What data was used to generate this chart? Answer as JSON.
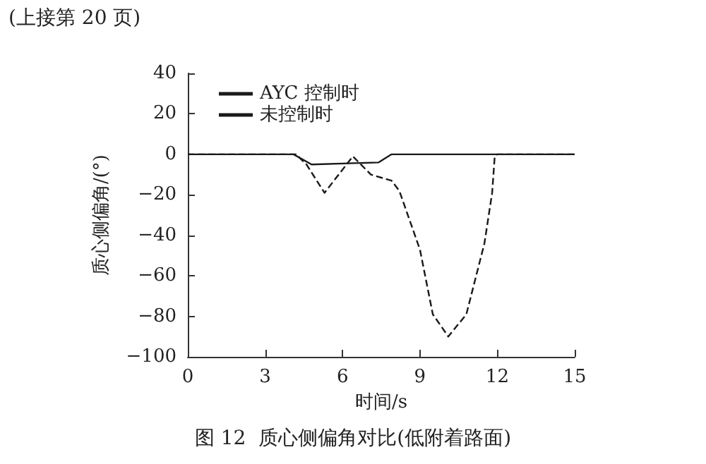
{
  "chart_data": {
    "type": "line",
    "title": "图 12  质心侧偏角对比(低附着路面)",
    "xlabel": "时间/s",
    "ylabel": "质心侧偏角/(°)",
    "annotations": [
      "(上接第 20 页)"
    ],
    "x": [
      0,
      4.1,
      4.8,
      7.4,
      7.9,
      15
    ],
    "series": [
      {
        "name": "AYC 控制时",
        "color": "#1a1a1a",
        "line_style": "solid",
        "values": [
          0,
          0,
          -5,
          -4,
          0,
          0
        ]
      },
      {
        "name": "未控制时",
        "color": "#1a1a1a",
        "line_style": "dashed",
        "x": [
          0,
          4.2,
          4.6,
          5.3,
          6.4,
          7.1,
          7.9,
          8.2,
          9.0,
          9.5,
          10.1,
          10.8,
          11.5,
          11.8,
          11.9,
          12.0,
          15
        ],
        "values": [
          0,
          0,
          -5,
          -19,
          -1,
          -10,
          -13,
          -18,
          -47,
          -79,
          -90,
          -79,
          -44,
          -19,
          -1,
          0,
          0
        ]
      }
    ],
    "xlim": [
      0,
      15
    ],
    "xticks": [
      0,
      3,
      6,
      9,
      12,
      15
    ],
    "ylim": [
      -100,
      40
    ],
    "yticks": [
      -100,
      -80,
      -60,
      -40,
      -20,
      0,
      20,
      40
    ],
    "grid": false,
    "legend": "top left",
    "marker": "none"
  }
}
